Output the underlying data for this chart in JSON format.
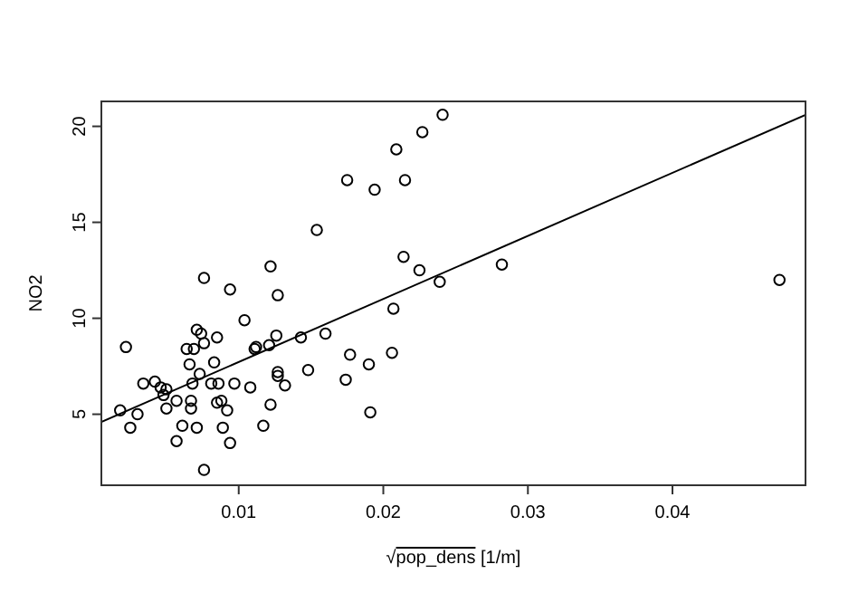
{
  "chart_data": {
    "type": "scatter",
    "xlabel": "√pop_dens [1/m]",
    "ylabel": "NO2",
    "xlim": [
      0.0005,
      0.0492
    ],
    "ylim": [
      1.3,
      21.3
    ],
    "xticks": [
      0.01,
      0.02,
      0.03,
      0.04
    ],
    "yticks": [
      5,
      10,
      15,
      20
    ],
    "grid": false,
    "series": [
      {
        "marker": "circle",
        "color": "#000000",
        "x": [
          0.0175,
          0.0154,
          0.0076,
          0.0094,
          0.0122,
          0.0127,
          0.0104,
          0.0022,
          0.0071,
          0.0074,
          0.0085,
          0.0064,
          0.0069,
          0.0076,
          0.0126,
          0.0112,
          0.0111,
          0.0121,
          0.0143,
          0.016,
          0.0177,
          0.0174,
          0.0148,
          0.0127,
          0.0127,
          0.0132,
          0.0108,
          0.0097,
          0.0086,
          0.0081,
          0.0083,
          0.0066,
          0.0068,
          0.0073,
          0.0034,
          0.0042,
          0.0046,
          0.005,
          0.0048,
          0.0057,
          0.0067,
          0.005,
          0.0067,
          0.0018,
          0.003,
          0.0025,
          0.0061,
          0.0071,
          0.0057,
          0.0076,
          0.0085,
          0.0088,
          0.0092,
          0.0089,
          0.0094,
          0.0122,
          0.0117,
          0.0241,
          0.0227,
          0.0209,
          0.0194,
          0.0215,
          0.0214,
          0.0225,
          0.0239,
          0.0282,
          0.0207,
          0.019,
          0.0206,
          0.0191,
          0.0474
        ],
        "values": [
          17.2,
          14.6,
          12.1,
          11.5,
          12.7,
          11.2,
          9.9,
          8.5,
          9.4,
          9.2,
          9.0,
          8.4,
          8.4,
          8.7,
          9.1,
          8.5,
          8.4,
          8.6,
          9.0,
          9.2,
          8.1,
          6.8,
          7.3,
          7.2,
          7.0,
          6.5,
          6.4,
          6.6,
          6.6,
          6.6,
          7.7,
          7.6,
          6.6,
          7.1,
          6.6,
          6.7,
          6.4,
          6.3,
          6.0,
          5.7,
          5.7,
          5.3,
          5.3,
          5.2,
          5.0,
          4.3,
          4.4,
          4.3,
          3.6,
          2.1,
          5.6,
          5.7,
          5.2,
          4.3,
          3.5,
          5.5,
          4.4,
          20.6,
          19.7,
          18.8,
          16.7,
          17.2,
          13.2,
          12.5,
          11.9,
          12.8,
          10.5,
          7.6,
          8.2,
          5.1,
          12.0
        ]
      },
      {
        "type": "line",
        "marker": "none",
        "color": "#000000",
        "x": [
          0.0005,
          0.0492
        ],
        "values": [
          4.6,
          20.6
        ]
      }
    ]
  }
}
